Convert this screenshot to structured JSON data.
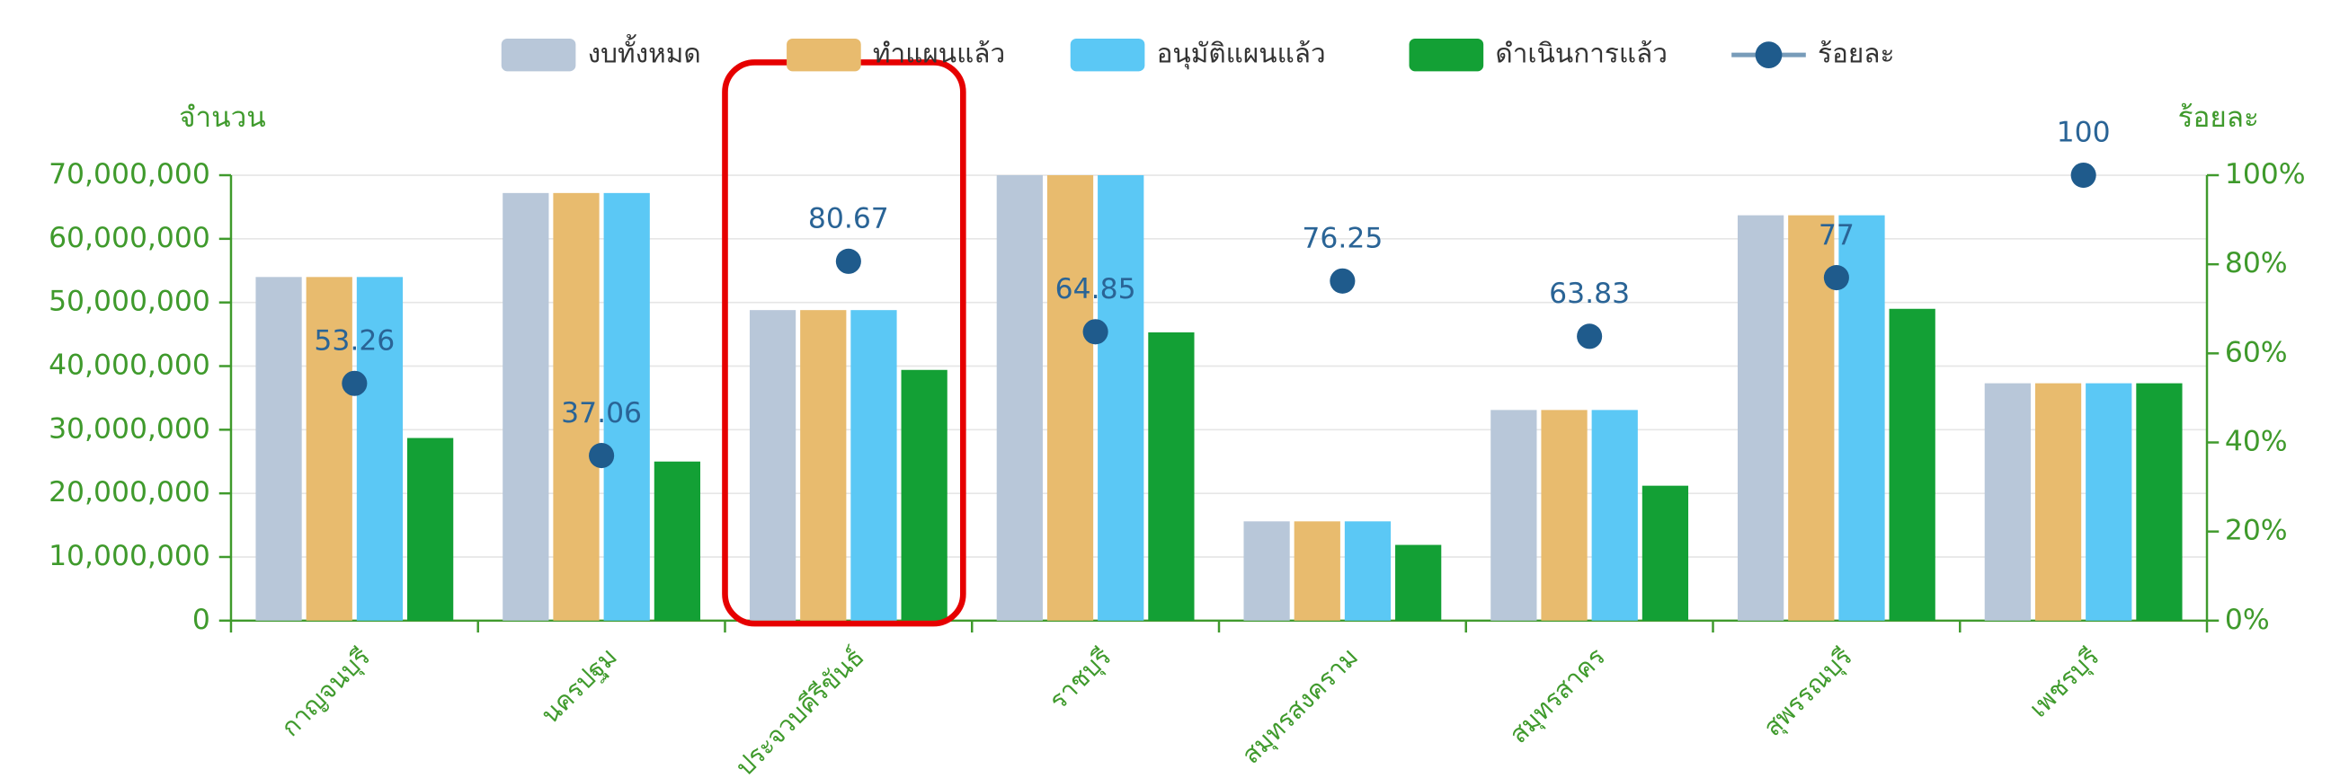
{
  "chart_data": {
    "type": "bar",
    "y_label": "จำนวน",
    "y2_label": "ร้อยละ",
    "categories": [
      "กาญจนบุรี",
      "นครปฐม",
      "ประจวบคีรีขันธ์",
      "ราชบุรี",
      "สมุทรสงคราม",
      "สมุทรสาคร",
      "สุพรรณบุรี",
      "เพชรบุรี"
    ],
    "series": [
      {
        "name": "งบทั้งหมด",
        "color": "#b8c7d9",
        "values": [
          54000000,
          67200000,
          48800000,
          70000000,
          15600000,
          33100000,
          63700000,
          37300000
        ]
      },
      {
        "name": "ทำแผนแล้ว",
        "color": "#e8bb6e",
        "values": [
          54000000,
          67200000,
          48800000,
          70000000,
          15600000,
          33100000,
          63700000,
          37300000
        ]
      },
      {
        "name": "อนุมัติแผนแล้ว",
        "color": "#5bc8f5",
        "values": [
          54000000,
          67200000,
          48800000,
          70000000,
          15600000,
          33100000,
          63700000,
          37300000
        ]
      },
      {
        "name": "ดำเนินการแล้ว",
        "color": "#13a035",
        "values": [
          28700000,
          25000000,
          39400000,
          45300000,
          11900000,
          21200000,
          49000000,
          37300000
        ]
      },
      {
        "name": "ร้อยละ",
        "color": "#1f5b8c",
        "axis": "y2",
        "values": [
          53.26,
          37.06,
          80.67,
          64.85,
          76.25,
          63.83,
          77,
          100
        ]
      }
    ],
    "ylim": [
      0,
      70000000
    ],
    "yticks": [
      0,
      {
        "value": 10000000,
        "label": "10,000,000"
      },
      {
        "value": 20000000,
        "label": "20,000,000"
      },
      {
        "value": 30000000,
        "label": "30,000,000"
      },
      {
        "value": 40000000,
        "label": "40,000,000"
      },
      {
        "value": 50000000,
        "label": "50,000,000"
      },
      {
        "value": 60000000,
        "label": "60,000,000"
      },
      {
        "value": 70000000,
        "label": "70,000,000"
      }
    ],
    "y2lim": [
      0,
      100
    ],
    "y2ticks": [
      {
        "value": 0,
        "label": "0%"
      },
      {
        "value": 20,
        "label": "20%"
      },
      {
        "value": 40,
        "label": "40%"
      },
      {
        "value": 60,
        "label": "60%"
      },
      {
        "value": 80,
        "label": "80%"
      },
      {
        "value": 100,
        "label": "100%"
      }
    ],
    "grid": true,
    "legend": "top",
    "highlight_category": 2
  }
}
